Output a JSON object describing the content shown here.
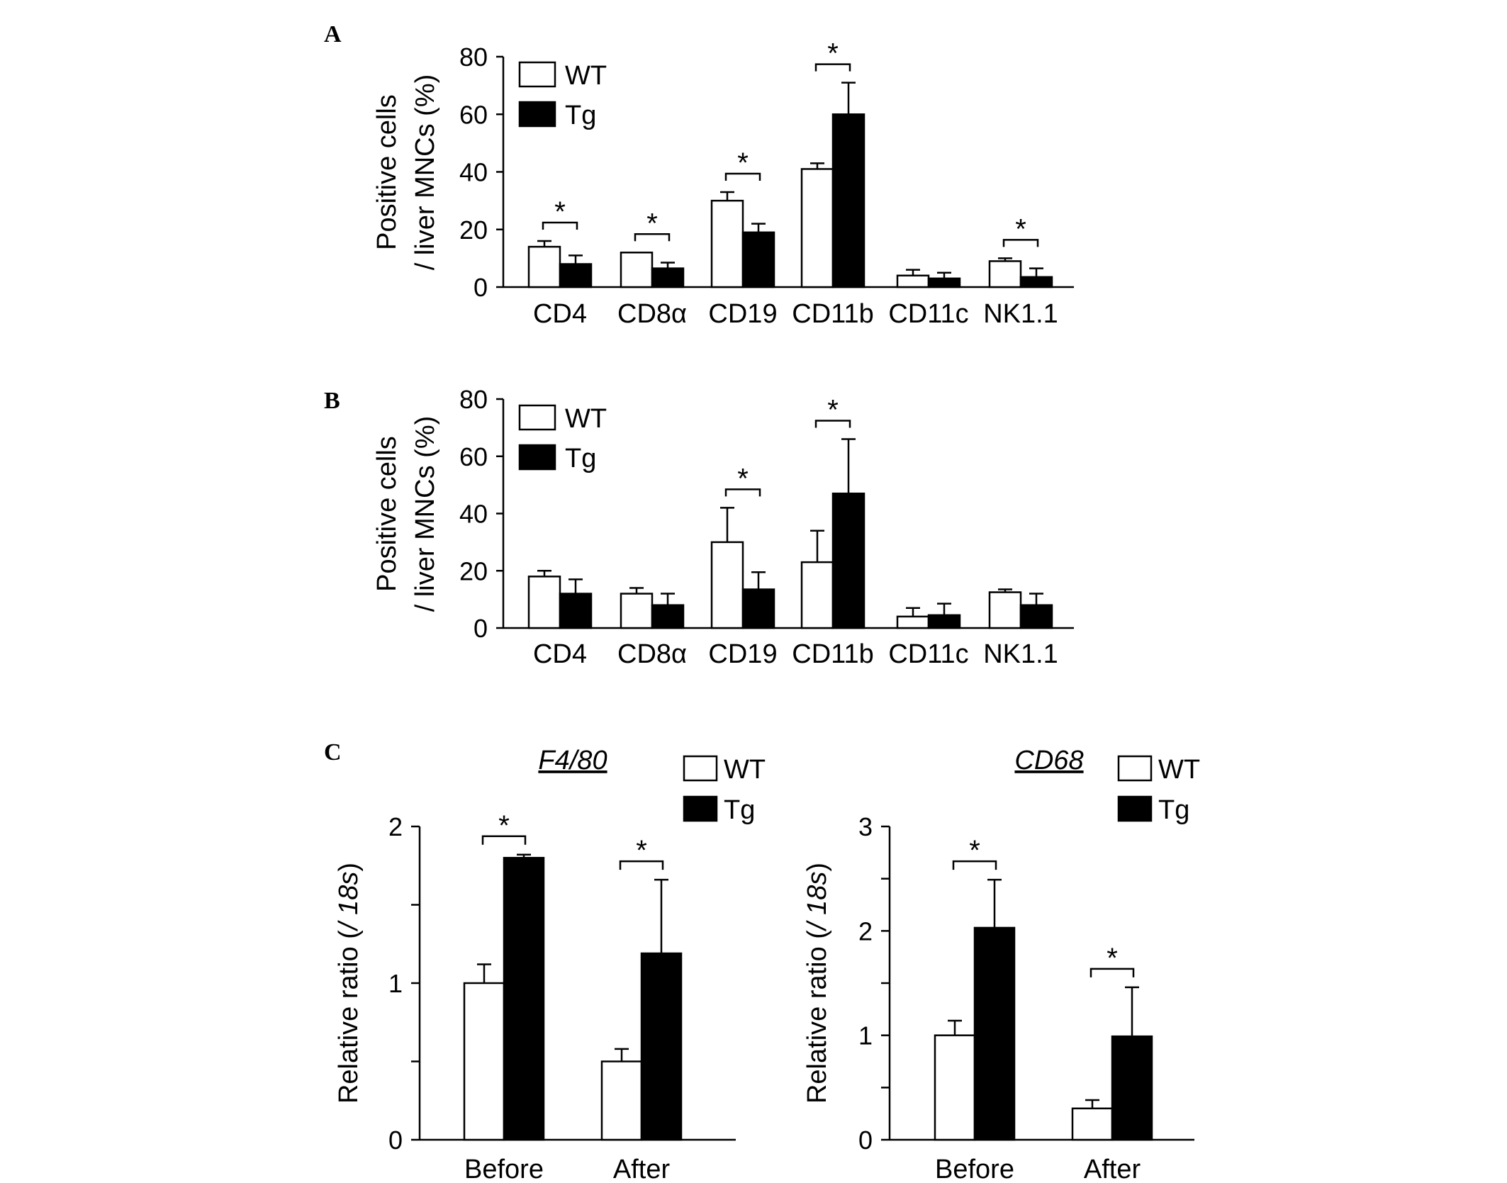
{
  "colors": {
    "wt": "#ffffff",
    "tg": "#000000",
    "stroke": "#000000"
  },
  "chart_data": [
    {
      "panel": "A",
      "type": "bar",
      "title": "",
      "ylabel_lines": [
        "Positive cells",
        "/ liver MNCs (%)"
      ],
      "ylim": [
        0,
        80
      ],
      "yticks": [
        0,
        20,
        40,
        60,
        80
      ],
      "ytick_labels": [
        "0",
        "20",
        "40",
        "60",
        "80"
      ],
      "categories": [
        "CD4",
        "CD8α",
        "CD19",
        "CD11b",
        "CD11c",
        "NK1.1"
      ],
      "series": [
        {
          "name": "WT",
          "values": [
            14,
            12,
            30,
            41,
            4,
            9
          ],
          "errors": [
            2,
            0,
            3,
            2,
            2,
            1
          ]
        },
        {
          "name": "Tg",
          "values": [
            8,
            6.5,
            19,
            60,
            3,
            3.5
          ],
          "errors": [
            3,
            2,
            3,
            11,
            2,
            3
          ]
        }
      ],
      "significance": [
        {
          "index": 0,
          "label": "*"
        },
        {
          "index": 1,
          "label": "*"
        },
        {
          "index": 2,
          "label": "*"
        },
        {
          "index": 3,
          "label": "*"
        },
        {
          "index": 5,
          "label": "*"
        }
      ],
      "legend": [
        "WT",
        "Tg"
      ],
      "legend_position": "top-left"
    },
    {
      "panel": "B",
      "type": "bar",
      "title": "",
      "ylabel_lines": [
        "Positive cells",
        "/ liver MNCs (%)"
      ],
      "ylim": [
        0,
        80
      ],
      "yticks": [
        0,
        20,
        40,
        60,
        80
      ],
      "ytick_labels": [
        "0",
        "20",
        "40",
        "60",
        "80"
      ],
      "categories": [
        "CD4",
        "CD8α",
        "CD19",
        "CD11b",
        "CD11c",
        "NK1.1"
      ],
      "series": [
        {
          "name": "WT",
          "values": [
            18,
            12,
            30,
            23,
            4,
            12.5
          ],
          "errors": [
            2,
            2,
            12,
            11,
            3,
            1
          ]
        },
        {
          "name": "Tg",
          "values": [
            12,
            8,
            13.5,
            47,
            4.5,
            8
          ],
          "errors": [
            5,
            4,
            6,
            19,
            4,
            4
          ]
        }
      ],
      "significance": [
        {
          "index": 2,
          "label": "*"
        },
        {
          "index": 3,
          "label": "*"
        }
      ],
      "legend": [
        "WT",
        "Tg"
      ],
      "legend_position": "top-left"
    },
    {
      "panel": "C",
      "type": "bar",
      "title": "F4/80",
      "ylabel": "Relative ratio (/ 18s)",
      "ylabel_plain": "Relative ratio (",
      "ylabel_italic": "/ 18s",
      "ylabel_close": ")",
      "ylim": [
        0,
        2
      ],
      "yticks": [
        0,
        0.5,
        1,
        1.5,
        2
      ],
      "ytick_labels": [
        "0",
        "",
        "1",
        "",
        "2"
      ],
      "categories": [
        "Before",
        "After"
      ],
      "series": [
        {
          "name": "WT",
          "values": [
            1.0,
            0.5
          ],
          "errors": [
            0.12,
            0.08
          ]
        },
        {
          "name": "Tg",
          "values": [
            1.8,
            1.19
          ],
          "errors": [
            0.02,
            0.47
          ]
        }
      ],
      "significance": [
        {
          "index": 0,
          "label": "*"
        },
        {
          "index": 1,
          "label": "*"
        }
      ],
      "legend": [
        "WT",
        "Tg"
      ],
      "legend_position": "top-right"
    },
    {
      "panel": "C",
      "type": "bar",
      "title": "CD68",
      "ylabel": "Relative ratio (/ 18s)",
      "ylabel_plain": "Relative ratio (",
      "ylabel_italic": "/ 18s",
      "ylabel_close": ")",
      "ylim": [
        0,
        3
      ],
      "yticks": [
        0,
        0.5,
        1,
        1.5,
        2,
        2.5,
        3
      ],
      "ytick_labels": [
        "0",
        "",
        "1",
        "",
        "2",
        "",
        "3"
      ],
      "categories": [
        "Before",
        "After"
      ],
      "series": [
        {
          "name": "WT",
          "values": [
            1.0,
            0.3
          ],
          "errors": [
            0.14,
            0.08
          ]
        },
        {
          "name": "Tg",
          "values": [
            2.03,
            0.99
          ],
          "errors": [
            0.46,
            0.47
          ]
        }
      ],
      "significance": [
        {
          "index": 0,
          "label": "*"
        },
        {
          "index": 1,
          "label": "*"
        }
      ],
      "legend": [
        "WT",
        "Tg"
      ],
      "legend_position": "top-right"
    }
  ]
}
